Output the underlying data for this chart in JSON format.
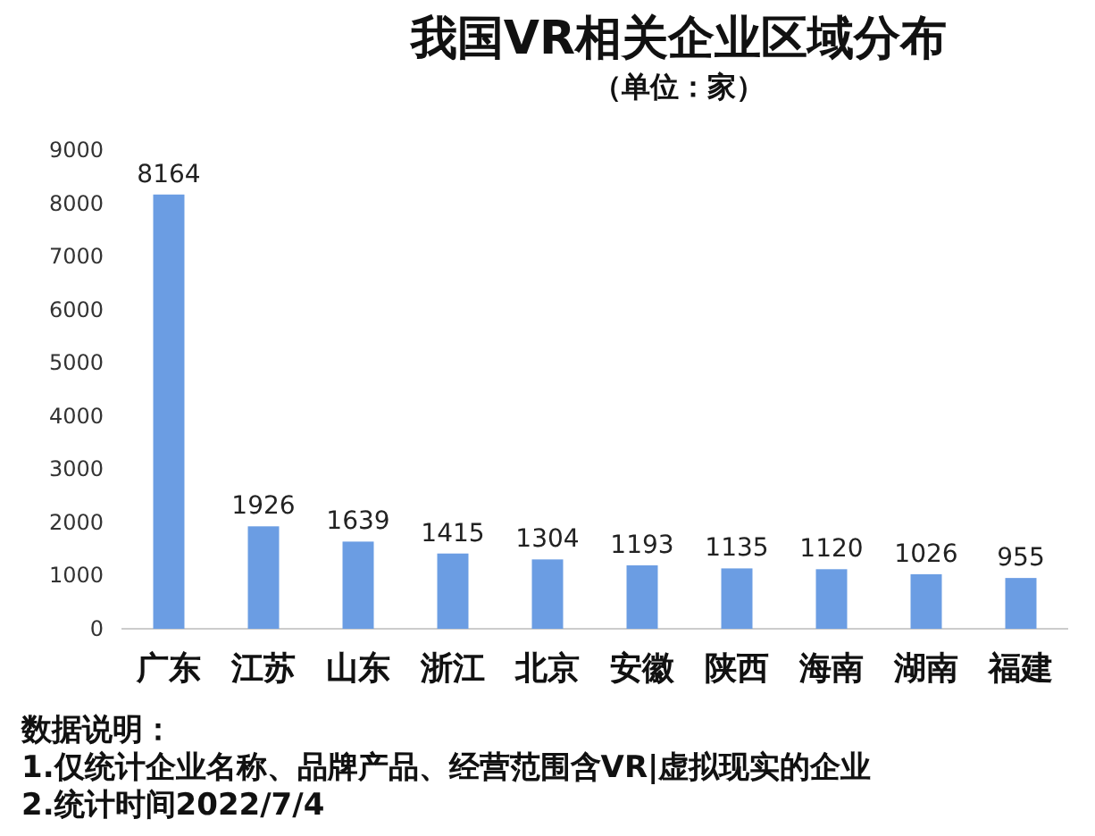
{
  "chart_data": {
    "type": "bar",
    "title": "我国VR相关企业区域分布",
    "subtitle": "（单位：家）",
    "categories": [
      "广东",
      "江苏",
      "山东",
      "浙江",
      "北京",
      "安徽",
      "陕西",
      "海南",
      "湖南",
      "福建"
    ],
    "values": [
      8164,
      1926,
      1639,
      1415,
      1304,
      1193,
      1135,
      1120,
      1026,
      955
    ],
    "color": "#6b9de3",
    "ylim": [
      0,
      9000
    ],
    "yticks": [
      0,
      1000,
      2000,
      3000,
      4000,
      5000,
      6000,
      7000,
      8000,
      9000
    ],
    "grid": false,
    "data_labels": true,
    "annotations": [
      "数据说明：",
      "1.仅统计企业名称、品牌产品、经营范围含VR|虚拟现实的企业",
      "2.统计时间2022/7/4"
    ]
  }
}
